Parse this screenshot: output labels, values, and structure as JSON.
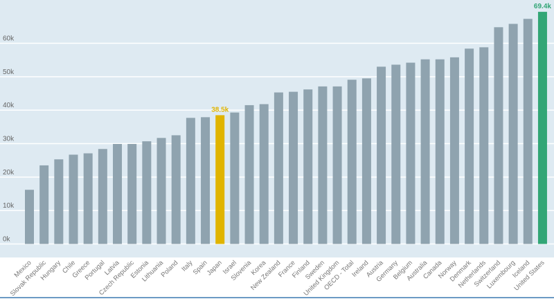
{
  "chart_data": {
    "type": "bar",
    "title": "",
    "xlabel": "",
    "ylabel": "",
    "ylim": [
      0,
      70
    ],
    "y_unit_suffix": "k",
    "y_ticks": [
      "0k",
      "10k",
      "20k",
      "30k",
      "40k",
      "50k",
      "60k"
    ],
    "grid": true,
    "categories": [
      "Mexico",
      "Slovak Republic",
      "Hungary",
      "Chile",
      "Greece",
      "Portugal",
      "Latvia",
      "Czech Republic",
      "Estonia",
      "Lithuania",
      "Poland",
      "Italy",
      "Spain",
      "Japan",
      "Israel",
      "Slovenia",
      "Korea",
      "New Zealand",
      "France",
      "Finland",
      "Sweden",
      "United Kingdom",
      "OECD - Total",
      "Ireland",
      "Austria",
      "Germany",
      "Belgium",
      "Australia",
      "Canada",
      "Norway",
      "Denmark",
      "Netherlands",
      "Switzerland",
      "Luxembourg",
      "Iceland",
      "United States"
    ],
    "values": [
      16.2,
      23.5,
      25.3,
      26.7,
      27.1,
      28.4,
      29.9,
      29.9,
      30.7,
      31.7,
      32.5,
      37.7,
      37.9,
      38.5,
      39.3,
      41.5,
      41.8,
      45.3,
      45.5,
      46.2,
      47.1,
      47.1,
      49.1,
      49.5,
      53.0,
      53.6,
      54.2,
      55.2,
      55.2,
      55.8,
      58.4,
      58.8,
      64.8,
      65.8,
      67.3,
      69.4
    ],
    "highlights": [
      {
        "category": "Japan",
        "label": "38.5k",
        "color": "#e0b400"
      },
      {
        "category": "United States",
        "label": "69.4k",
        "color": "#32a676"
      }
    ],
    "default_color": "#8fa3af",
    "background_color": "#deeaf2"
  }
}
